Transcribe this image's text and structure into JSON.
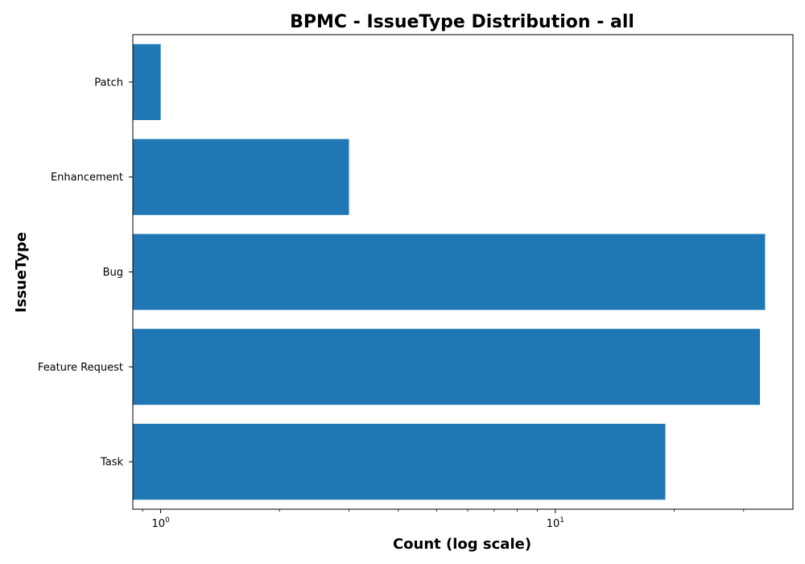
{
  "chart_data": {
    "type": "bar",
    "orientation": "horizontal",
    "title": "BPMC - IssueType Distribution - all",
    "xlabel": "Count (log scale)",
    "ylabel": "IssueType",
    "x_scale": "log",
    "xlim": [
      0.85,
      40
    ],
    "categories": [
      "Task",
      "Feature Request",
      "Bug",
      "Enhancement",
      "Patch"
    ],
    "values": [
      19,
      33,
      34,
      3,
      1
    ],
    "x_ticks": [
      {
        "value": 1,
        "base": "10",
        "exp": "0"
      },
      {
        "value": 10,
        "base": "10",
        "exp": "1"
      }
    ],
    "bar_color": "#1f77b4",
    "grid": false,
    "legend": "none"
  }
}
